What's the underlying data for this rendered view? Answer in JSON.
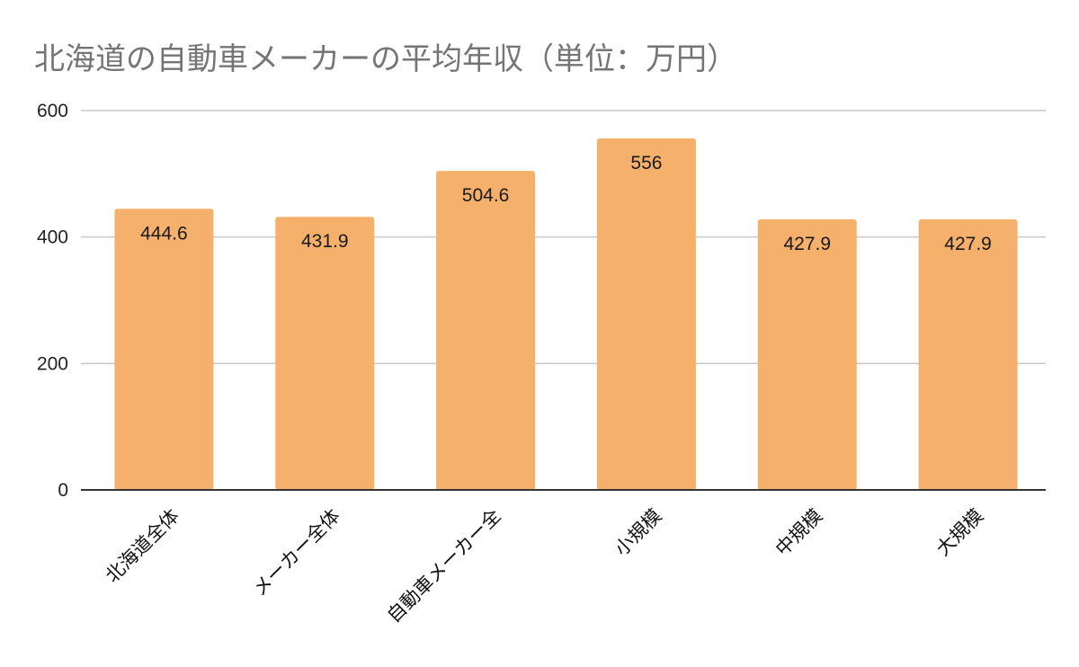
{
  "chart_data": {
    "type": "bar",
    "title": "北海道の自動車メーカーの平均年収（単位：万円）",
    "xlabel": "",
    "ylabel": "",
    "categories": [
      "北海道全体",
      "メーカー全体",
      "自動車メーカー全",
      "小規模",
      "中規模",
      "大規模"
    ],
    "values": [
      444.6,
      431.9,
      504.6,
      556,
      427.9,
      427.9
    ],
    "data_labels": [
      "444.6",
      "431.9",
      "504.6",
      "556",
      "427.9",
      "427.9"
    ],
    "ylim": [
      0,
      600
    ],
    "yticks": [
      0,
      200,
      400,
      600
    ],
    "bar_color": "#f5b06c",
    "grid": true,
    "legend": "none"
  }
}
